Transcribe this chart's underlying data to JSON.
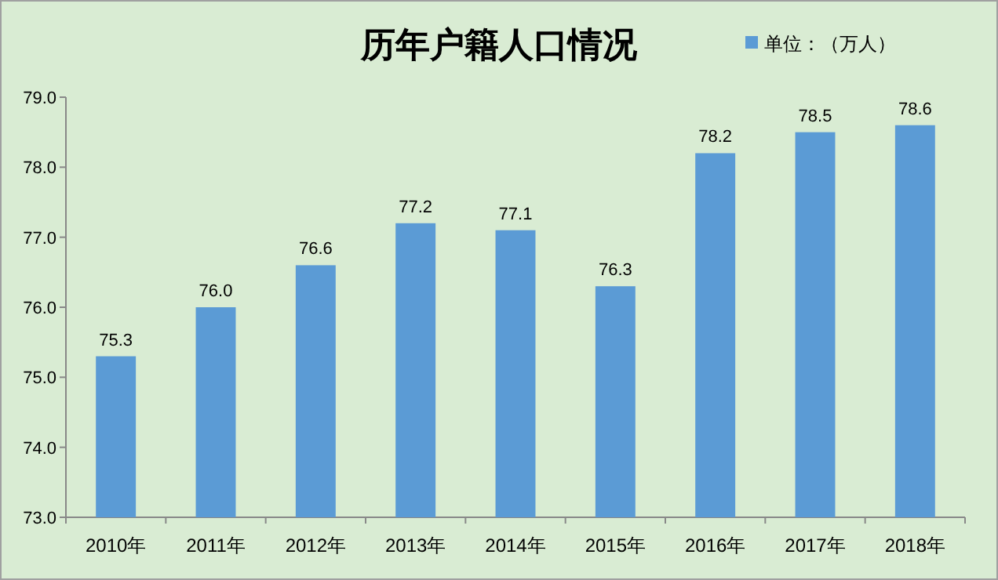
{
  "chart_data": {
    "type": "bar",
    "title": "历年户籍人口情况",
    "categories": [
      "2010年",
      "2011年",
      "2012年",
      "2013年",
      "2014年",
      "2015年",
      "2016年",
      "2017年",
      "2018年"
    ],
    "series": [
      {
        "name": "单位：（万人）",
        "color": "#5b9bd5",
        "values": [
          75.3,
          76.0,
          76.6,
          77.2,
          77.1,
          76.3,
          78.2,
          78.5,
          78.6
        ],
        "value_labels": [
          "75.3",
          "76.0",
          "76.6",
          "77.2",
          "77.1",
          "76.3",
          "78.2",
          "78.5",
          "78.6"
        ]
      }
    ],
    "ylim": [
      73,
      79
    ],
    "yticks": [
      {
        "value": 73,
        "label": "73.0"
      },
      {
        "value": 74,
        "label": "74.0"
      },
      {
        "value": 75,
        "label": "75.0"
      },
      {
        "value": 76,
        "label": "76.0"
      },
      {
        "value": 77,
        "label": "77.0"
      },
      {
        "value": 78,
        "label": "78.0"
      },
      {
        "value": 79,
        "label": "79.0"
      }
    ],
    "grid": false,
    "legend": "top right"
  }
}
